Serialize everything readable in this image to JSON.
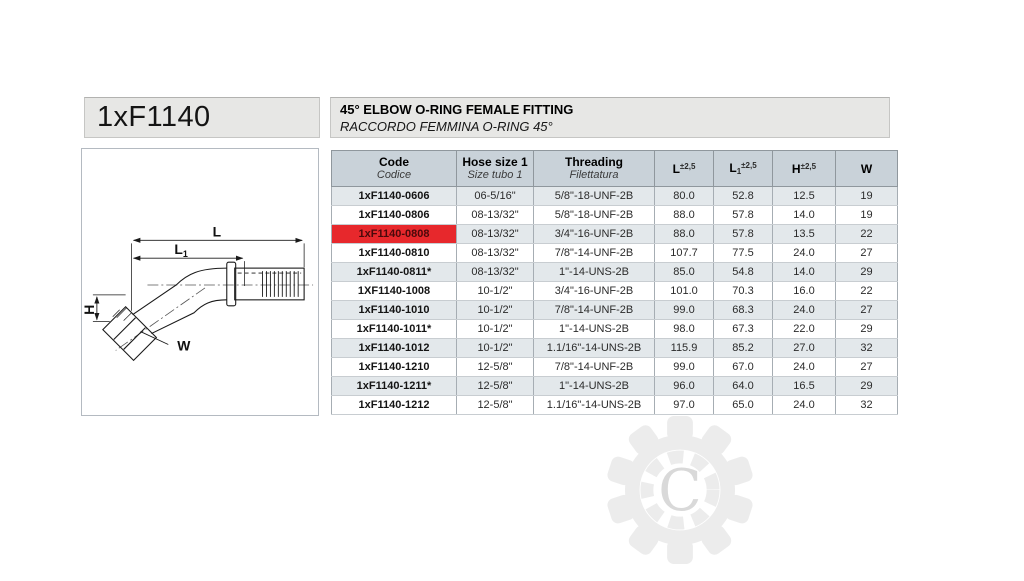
{
  "header": {
    "part_number": "1xF1140",
    "title": "45° ELBOW O-RING FEMALE FITTING",
    "subtitle": "RACCORDO FEMMINA O-RING 45°"
  },
  "drawing": {
    "labels": {
      "l": "L",
      "l1_main": "L",
      "l1_sub": "1",
      "h": "H",
      "w": "W"
    }
  },
  "table": {
    "columns": [
      {
        "en": "Code",
        "it": "Codice"
      },
      {
        "en": "Hose size 1",
        "it": "Size tubo 1"
      },
      {
        "en": "Threading",
        "it": "Filettatura"
      },
      {
        "main": "L",
        "sup": "±2,5"
      },
      {
        "main": "L",
        "sub": "1",
        "sup": "±2,5"
      },
      {
        "main": "H",
        "sup": "±2,5"
      },
      {
        "main": "W"
      }
    ],
    "rows": [
      {
        "code": "1xF1140-0606",
        "hose": "06-5/16\"",
        "threading": "5/8\"-18-UNF-2B",
        "l": "80.0",
        "l1": "52.8",
        "h": "12.5",
        "w": "19",
        "highlight": false
      },
      {
        "code": "1xF1140-0806",
        "hose": "08-13/32\"",
        "threading": "5/8\"-18-UNF-2B",
        "l": "88.0",
        "l1": "57.8",
        "h": "14.0",
        "w": "19",
        "highlight": false
      },
      {
        "code": "1xF1140-0808",
        "hose": "08-13/32\"",
        "threading": "3/4\"-16-UNF-2B",
        "l": "88.0",
        "l1": "57.8",
        "h": "13.5",
        "w": "22",
        "highlight": true
      },
      {
        "code": "1xF1140-0810",
        "hose": "08-13/32\"",
        "threading": "7/8\"-14-UNF-2B",
        "l": "107.7",
        "l1": "77.5",
        "h": "24.0",
        "w": "27",
        "highlight": false
      },
      {
        "code": "1xF1140-0811*",
        "hose": "08-13/32\"",
        "threading": "1\"-14-UNS-2B",
        "l": "85.0",
        "l1": "54.8",
        "h": "14.0",
        "w": "29",
        "highlight": false
      },
      {
        "code": "1XF1140-1008",
        "hose": "10-1/2\"",
        "threading": "3/4\"-16-UNF-2B",
        "l": "101.0",
        "l1": "70.3",
        "h": "16.0",
        "w": "22",
        "highlight": false
      },
      {
        "code": "1xF1140-1010",
        "hose": "10-1/2\"",
        "threading": "7/8\"-14-UNF-2B",
        "l": "99.0",
        "l1": "68.3",
        "h": "24.0",
        "w": "27",
        "highlight": false
      },
      {
        "code": "1xF1140-1011*",
        "hose": "10-1/2\"",
        "threading": "1\"-14-UNS-2B",
        "l": "98.0",
        "l1": "67.3",
        "h": "22.0",
        "w": "29",
        "highlight": false
      },
      {
        "code": "1xF1140-1012",
        "hose": "10-1/2\"",
        "threading": "1.1/16\"-14-UNS-2B",
        "l": "115.9",
        "l1": "85.2",
        "h": "27.0",
        "w": "32",
        "highlight": false
      },
      {
        "code": "1xF1140-1210",
        "hose": "12-5/8\"",
        "threading": "7/8\"-14-UNF-2B",
        "l": "99.0",
        "l1": "67.0",
        "h": "24.0",
        "w": "27",
        "highlight": false
      },
      {
        "code": "1xF1140-1211*",
        "hose": "12-5/8\"",
        "threading": "1\"-14-UNS-2B",
        "l": "96.0",
        "l1": "64.0",
        "h": "16.5",
        "w": "29",
        "highlight": false
      },
      {
        "code": "1xF1140-1212",
        "hose": "12-5/8\"",
        "threading": "1.1/16\"-14-UNS-2B",
        "l": "97.0",
        "l1": "65.0",
        "h": "24.0",
        "w": "32",
        "highlight": false
      }
    ]
  },
  "watermark": {
    "letter": "C"
  },
  "colors": {
    "accent_red": "#e7282c",
    "table_header_bg": "#c9d2d9",
    "row_stripe": "#e3e8eb",
    "header_box_bg": "#e7e7e5"
  }
}
